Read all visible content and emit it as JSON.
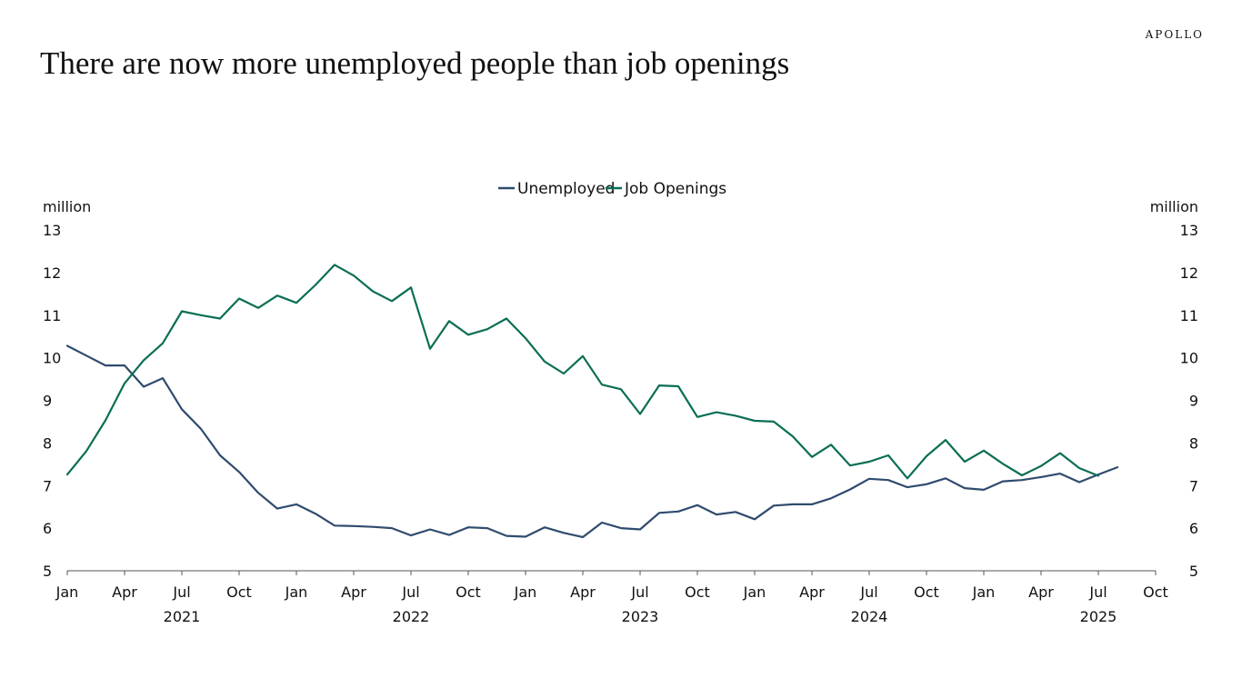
{
  "brand": "APOLLO",
  "title": "There are now more unemployed people than job openings",
  "chart_data": {
    "type": "line",
    "title": "There are now more unemployed people than job openings",
    "ylabel_left": "million",
    "ylabel_right": "million",
    "ylim": [
      5,
      13
    ],
    "yticks": [
      5,
      6,
      7,
      8,
      9,
      10,
      11,
      12,
      13
    ],
    "x_start": "2021-01",
    "x_end": "2025-10",
    "x_tick_labels": [
      "Jan",
      "Apr",
      "Jul",
      "Oct",
      "Jan",
      "Apr",
      "Jul",
      "Oct",
      "Jan",
      "Apr",
      "Jul",
      "Oct",
      "Jan",
      "Apr",
      "Jul",
      "Oct",
      "Jan",
      "Apr",
      "Jul",
      "Oct"
    ],
    "year_labels": [
      "2021",
      "2022",
      "2023",
      "2024",
      "2025"
    ],
    "colors": {
      "Unemployed": "#2f4b6e",
      "Job Openings": "#0a6e55"
    },
    "series": [
      {
        "name": "Unemployed",
        "values": [
          10.28,
          10.05,
          9.82,
          9.82,
          9.32,
          9.52,
          8.79,
          8.33,
          7.71,
          7.32,
          6.83,
          6.46,
          6.56,
          6.34,
          6.06,
          6.05,
          6.03,
          6.0,
          5.83,
          5.97,
          5.84,
          6.02,
          6.0,
          5.82,
          5.8,
          6.02,
          5.89,
          5.79,
          6.13,
          6.0,
          5.97,
          6.36,
          6.39,
          6.54,
          6.32,
          6.38,
          6.21,
          6.53,
          6.56,
          6.56,
          6.7,
          6.91,
          7.16,
          7.13,
          6.96,
          7.03,
          7.17,
          6.94,
          6.9,
          7.1,
          7.13,
          7.2,
          7.28,
          7.08,
          7.26,
          7.43
        ],
        "start": "2021-01"
      },
      {
        "name": "Job Openings",
        "values": [
          7.26,
          7.81,
          8.53,
          9.4,
          9.94,
          10.34,
          11.09,
          11.0,
          10.92,
          11.39,
          11.17,
          11.46,
          11.29,
          11.71,
          12.18,
          11.93,
          11.56,
          11.33,
          11.65,
          10.21,
          10.86,
          10.54,
          10.67,
          10.92,
          10.46,
          9.91,
          9.63,
          10.04,
          9.37,
          9.26,
          8.68,
          9.35,
          9.33,
          8.61,
          8.72,
          8.64,
          8.52,
          8.5,
          8.15,
          7.67,
          7.96,
          7.47,
          7.56,
          7.71,
          7.17,
          7.69,
          8.07,
          7.56,
          7.82,
          7.51,
          7.24,
          7.46,
          7.76,
          7.41,
          7.23
        ],
        "start": "2021-01"
      }
    ]
  }
}
